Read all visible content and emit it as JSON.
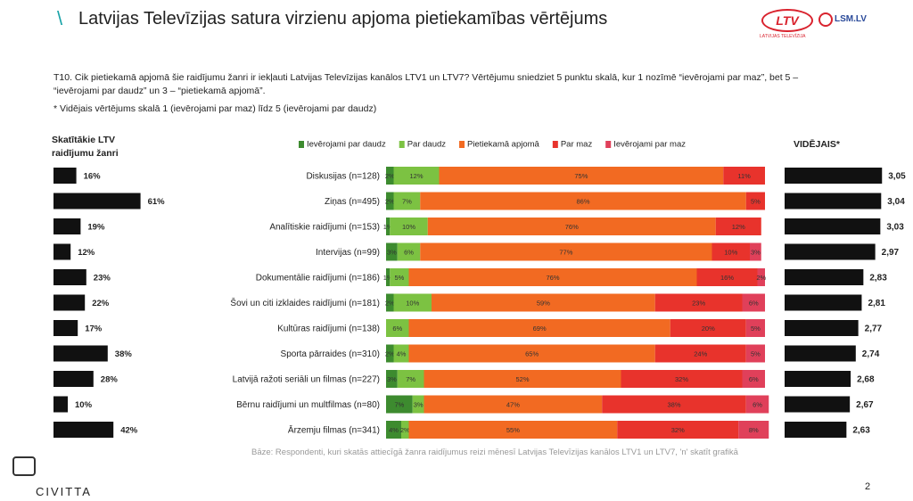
{
  "header": {
    "title": "Latvijas Televīzijas satura virzienu apjoma pietiekamības vērtējums",
    "logo_ltv": "LTV",
    "logo_ltv_sub": "LATVIJAS TELEVĪZIJA",
    "logo_lsm": "LSM.LV"
  },
  "question": "T10. Cik pietiekamā apjomā šie raidījumu žanri ir iekļauti Latvijas Televīzijas kanālos LTV1 un LTV7? Vērtējumu sniedziet 5 punktu skalā, kur 1 nozīmē “ievērojami par maz”, bet 5 – “ievērojami par daudz” un 3 – “pietiekamā apjomā”.",
  "note": "* Vidējais vērtējums skalā 1 (ievērojami par maz) līdz 5 (ievērojami par daudz)",
  "chart_data": [
    {
      "type": "hbar",
      "title": "Skatītākie LTV raidījumu žanri",
      "color": "#111111",
      "values": [
        16,
        61,
        19,
        12,
        23,
        22,
        17,
        38,
        28,
        10,
        42
      ],
      "value_labels": [
        "16%",
        "61%",
        "19%",
        "12%",
        "23%",
        "22%",
        "17%",
        "38%",
        "28%",
        "10%",
        "42%"
      ]
    },
    {
      "type": "stacked_hbar",
      "categories": [
        "Diskusijas (n=128)",
        "Ziņas (n=495)",
        "Analītiskie raidījumi (n=153)",
        "Intervijas (n=99)",
        "Dokumentālie raidījumi (n=186)",
        "Šovi un citi izklaides raidījumi (n=181)",
        "Kultūras raidījumi (n=138)",
        "Sporta pārraides (n=310)",
        "Latvijā ražoti seriāli un filmas (n=227)",
        "Bērnu raidījumi un multfilmas (n=80)",
        "Ārzemju filmas (n=341)"
      ],
      "series": [
        {
          "name": "Ievērojami par daudz",
          "color": "#3d8b2f",
          "values": [
            2,
            2,
            1,
            3,
            1,
            2,
            null,
            2,
            3,
            7,
            4
          ],
          "value_labels": [
            "2%",
            "2%",
            "1%",
            "3%",
            "1%",
            "2%",
            null,
            "2%",
            "3%",
            "7%",
            "4%"
          ]
        },
        {
          "name": "Par daudz",
          "color": "#7cc242",
          "values": [
            12,
            7,
            10,
            6,
            5,
            10,
            6,
            4,
            7,
            3,
            2
          ],
          "value_labels": [
            "12%",
            "7%",
            "10%",
            "6%",
            "5%",
            "10%",
            "6%",
            "4%",
            "7%",
            "3%",
            "2%"
          ]
        },
        {
          "name": "Pietiekamā apjomā",
          "color": "#f26a22",
          "values": [
            75,
            86,
            76,
            77,
            76,
            59,
            69,
            65,
            52,
            47,
            55
          ],
          "value_labels": [
            "75%",
            "86%",
            "76%",
            "77%",
            "76%",
            "59%",
            "69%",
            "65%",
            "52%",
            "47%",
            "55%"
          ]
        },
        {
          "name": "Par maz",
          "color": "#e8332c",
          "values": [
            11,
            5,
            12,
            10,
            16,
            23,
            20,
            24,
            32,
            38,
            32
          ],
          "value_labels": [
            "11%",
            "5%",
            "12%",
            "10%",
            "16%",
            "23%",
            "20%",
            "24%",
            "32%",
            "38%",
            "32%"
          ]
        },
        {
          "name": "Ievērojami par maz",
          "color": "#e0405a",
          "values": [
            null,
            null,
            null,
            3,
            2,
            6,
            5,
            5,
            6,
            6,
            8
          ],
          "value_labels": [
            null,
            null,
            null,
            "3%",
            "2%",
            "6%",
            "5%",
            "5%",
            "6%",
            "6%",
            "8%"
          ]
        }
      ]
    },
    {
      "type": "hbar_avg",
      "title": "VIDĒJAIS*",
      "color": "#111111",
      "values": [
        3.05,
        3.04,
        3.03,
        2.97,
        2.83,
        2.81,
        2.77,
        2.74,
        2.68,
        2.67,
        2.63
      ],
      "value_labels": [
        "3,05",
        "3,04",
        "3,03",
        "2,97",
        "2,83",
        "2,81",
        "2,77",
        "2,74",
        "2,68",
        "2,67",
        "2,63"
      ]
    }
  ],
  "footer": {
    "base": "Bāze: Respondenti, kuri skatās attiecīgā žanra raidījumus reizi mēnesī Latvijas Televīzijas kanālos LTV1 un LTV7, 'n' skatīt grafikā",
    "brand": "CIVITTA",
    "page": "2"
  }
}
